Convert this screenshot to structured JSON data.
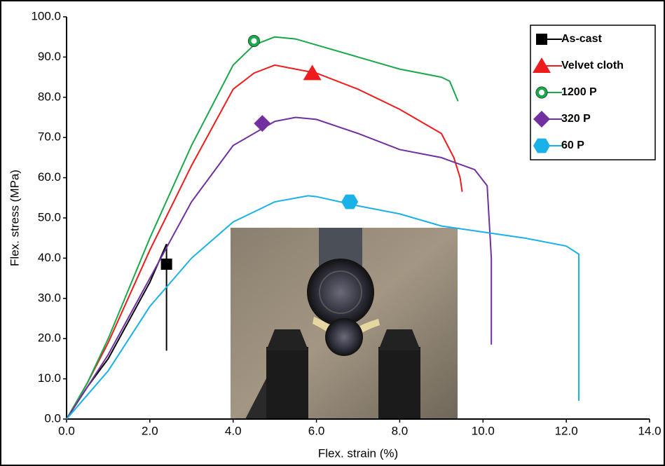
{
  "chart_data": {
    "type": "line",
    "xlabel": "Flex. strain (%)",
    "ylabel": "Flex. stress (MPa)",
    "xlim": [
      0,
      14
    ],
    "ylim": [
      0,
      100
    ],
    "xticks": [
      {
        "value": 0,
        "label": "0.0"
      },
      {
        "value": 2,
        "label": "2.0"
      },
      {
        "value": 4,
        "label": "4.0"
      },
      {
        "value": 6,
        "label": "6.0"
      },
      {
        "value": 8,
        "label": "8.0"
      },
      {
        "value": 10,
        "label": "10.0"
      },
      {
        "value": 12,
        "label": "12.0"
      },
      {
        "value": 14,
        "label": "14.0"
      }
    ],
    "yticks": [
      {
        "value": 0,
        "label": "0.0"
      },
      {
        "value": 10,
        "label": "10.0"
      },
      {
        "value": 20,
        "label": "20.0"
      },
      {
        "value": 30,
        "label": "30.0"
      },
      {
        "value": 40,
        "label": "40.0"
      },
      {
        "value": 50,
        "label": "50.0"
      },
      {
        "value": 60,
        "label": "60.0"
      },
      {
        "value": 70,
        "label": "70.0"
      },
      {
        "value": 80,
        "label": "80.0"
      },
      {
        "value": 90,
        "label": "90.0"
      },
      {
        "value": 100,
        "label": "100.0"
      }
    ],
    "legend": "upper right",
    "series": [
      {
        "name": "As-cast",
        "color": "#000000",
        "marker": "square",
        "x": [
          0,
          0.5,
          1,
          2,
          2.4,
          2.4
        ],
        "y": [
          0,
          8,
          15,
          34,
          43.5,
          17
        ],
        "marker_x": 2.4,
        "marker_y": 38.5
      },
      {
        "name": "Velvet cloth",
        "color": "#ee1c1c",
        "marker": "triangle",
        "x": [
          0,
          0.5,
          1,
          2,
          3,
          4,
          4.5,
          5,
          6,
          7,
          8,
          9,
          9.3,
          9.45,
          9.5
        ],
        "y": [
          0,
          9,
          19,
          42,
          63,
          82,
          86,
          88,
          86,
          82,
          77,
          71,
          65,
          60,
          56.5
        ],
        "marker_x": 5.9,
        "marker_y": 86
      },
      {
        "name": "1200 P",
        "color": "#1aa84a",
        "marker": "ring",
        "x": [
          0,
          0.5,
          1,
          2,
          3,
          4,
          4.5,
          5,
          5.5,
          6,
          7,
          8,
          9,
          9.2,
          9.4
        ],
        "y": [
          0,
          9,
          20,
          45,
          68,
          88,
          93,
          95,
          94.5,
          93,
          90,
          87,
          85,
          84,
          79
        ],
        "marker_x": 4.5,
        "marker_y": 94
      },
      {
        "name": "320 P",
        "color": "#7030a0",
        "marker": "diamond",
        "x": [
          0,
          0.5,
          1,
          2,
          3,
          4,
          5,
          5.5,
          6,
          7,
          8,
          9,
          9.8,
          10.1,
          10.2,
          10.2
        ],
        "y": [
          0,
          8,
          16,
          35,
          54,
          68,
          74,
          75,
          74.5,
          71,
          67,
          65,
          62,
          58,
          40,
          18.5
        ],
        "marker_x": 4.7,
        "marker_y": 73.5
      },
      {
        "name": "60 P",
        "color": "#1ab0e8",
        "marker": "hexagon",
        "x": [
          0,
          0.5,
          1,
          2,
          3,
          4,
          5,
          5.8,
          6,
          7,
          8,
          9,
          10,
          11,
          12,
          12.3,
          12.3
        ],
        "y": [
          0,
          6,
          12,
          28,
          40,
          49,
          54,
          55.5,
          55.3,
          53,
          51,
          48,
          46.5,
          45,
          43,
          41,
          4.5
        ],
        "marker_x": 6.8,
        "marker_y": 54
      }
    ]
  }
}
